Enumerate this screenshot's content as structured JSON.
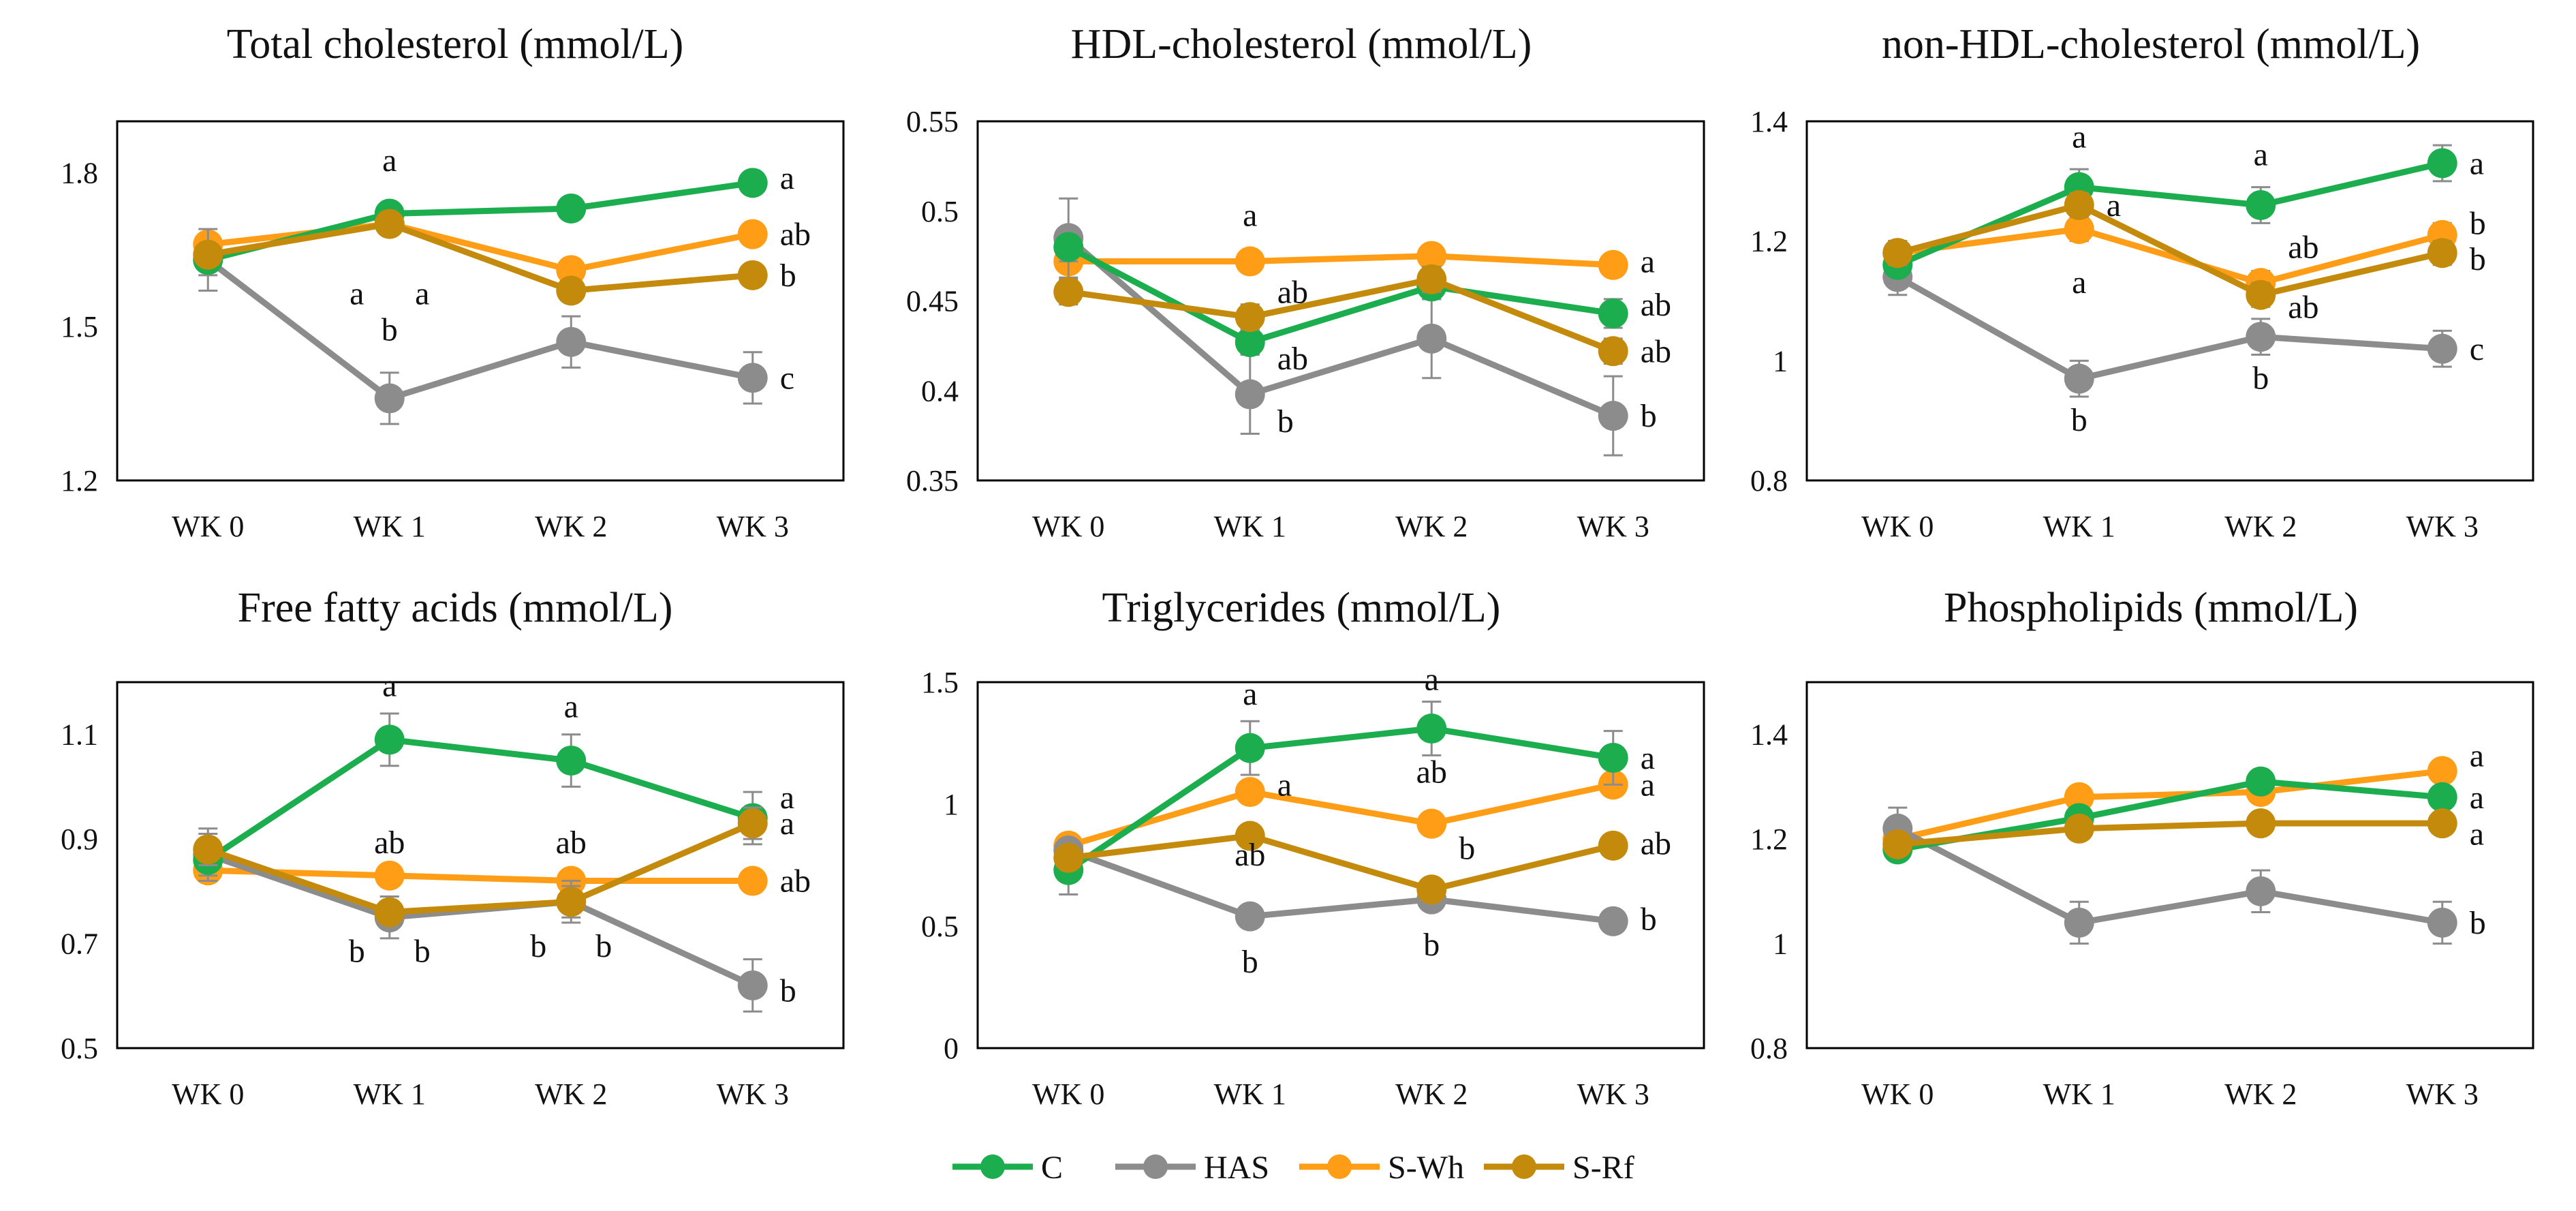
{
  "colors": {
    "C": "#1cae4e",
    "HAS": "#8c8c8c",
    "S-Wh": "#ff9e16",
    "S-Rf": "#c48a0c",
    "axis": "#000000"
  },
  "legend": [
    {
      "name": "C",
      "label": "C"
    },
    {
      "name": "HAS",
      "label": "HAS"
    },
    {
      "name": "S-Wh",
      "label": "S-Wh"
    },
    {
      "name": "S-Rf",
      "label": "S-Rf"
    }
  ],
  "chart_data": [
    {
      "type": "line",
      "title": "Total cholesterol (mmol/L)",
      "categories": [
        "WK 0",
        "WK 1",
        "WK 2",
        "WK 3"
      ],
      "ylim": [
        1.2,
        1.9
      ],
      "yticks": [
        "1.2",
        "1.5",
        "1.8"
      ],
      "series": [
        {
          "name": "C",
          "values": [
            1.63,
            1.72,
            1.73,
            1.78
          ],
          "err": [
            0.03,
            0.02,
            0.02,
            0.02
          ]
        },
        {
          "name": "HAS",
          "values": [
            1.63,
            1.36,
            1.47,
            1.4
          ],
          "err": [
            0.06,
            0.05,
            0.05,
            0.05
          ]
        },
        {
          "name": "S-Wh",
          "values": [
            1.66,
            1.7,
            1.61,
            1.68
          ],
          "err": [
            0.02,
            0.02,
            0.02,
            0.02
          ]
        },
        {
          "name": "S-Rf",
          "values": [
            1.64,
            1.7,
            1.57,
            1.6
          ],
          "err": [
            0.02,
            0.02,
            0.02,
            0.02
          ]
        }
      ],
      "annotations": [
        {
          "x": 1,
          "y": 1.79,
          "text": "a",
          "pos": "above"
        },
        {
          "x": 1,
          "y": 1.61,
          "text": "a",
          "pos": "belowleft"
        },
        {
          "x": 1,
          "y": 1.61,
          "text": "a",
          "pos": "belowright"
        },
        {
          "x": 1,
          "y": 1.46,
          "text": "b",
          "pos": "above"
        },
        {
          "x": 3,
          "y": 1.79,
          "text": "a",
          "pos": "right"
        },
        {
          "x": 3,
          "y": 1.68,
          "text": "ab",
          "pos": "right"
        },
        {
          "x": 3,
          "y": 1.6,
          "text": "b",
          "pos": "right"
        },
        {
          "x": 3,
          "y": 1.4,
          "text": "c",
          "pos": "right"
        }
      ]
    },
    {
      "type": "line",
      "title": "HDL-cholesterol (mmol/L)",
      "categories": [
        "WK 0",
        "WK 1",
        "WK 2",
        "WK 3"
      ],
      "ylim": [
        0.35,
        0.55
      ],
      "yticks": [
        "0.35",
        "0.4",
        "0.45",
        "0.5",
        "0.55"
      ],
      "series": [
        {
          "name": "C",
          "values": [
            0.48,
            0.427,
            0.458,
            0.443
          ],
          "err": [
            0.008,
            0.007,
            0.007,
            0.008
          ]
        },
        {
          "name": "HAS",
          "values": [
            0.485,
            0.398,
            0.429,
            0.386
          ],
          "err": [
            0.022,
            0.022,
            0.022,
            0.022
          ]
        },
        {
          "name": "S-Wh",
          "values": [
            0.472,
            0.472,
            0.475,
            0.47
          ],
          "err": [
            0.005,
            0.005,
            0.005,
            0.005
          ]
        },
        {
          "name": "S-Rf",
          "values": [
            0.455,
            0.441,
            0.462,
            0.422
          ],
          "err": [
            0.007,
            0.007,
            0.007,
            0.007
          ]
        }
      ],
      "annotations": [
        {
          "x": 1,
          "y": 0.488,
          "text": "a",
          "pos": "above"
        },
        {
          "x": 1,
          "y": 0.455,
          "text": "ab",
          "pos": "right"
        },
        {
          "x": 1,
          "y": 0.418,
          "text": "ab",
          "pos": "right"
        },
        {
          "x": 1,
          "y": 0.383,
          "text": "b",
          "pos": "right"
        },
        {
          "x": 3,
          "y": 0.472,
          "text": "a",
          "pos": "right"
        },
        {
          "x": 3,
          "y": 0.448,
          "text": "ab",
          "pos": "right"
        },
        {
          "x": 3,
          "y": 0.422,
          "text": "ab",
          "pos": "right"
        },
        {
          "x": 3,
          "y": 0.386,
          "text": "b",
          "pos": "right"
        }
      ]
    },
    {
      "type": "line",
      "title": "non-HDL-cholesterol (mmol/L)",
      "categories": [
        "WK 0",
        "WK 1",
        "WK 2",
        "WK 3"
      ],
      "ylim": [
        0.8,
        1.4
      ],
      "yticks": [
        "0.8",
        "1",
        "1.2",
        "1.4"
      ],
      "series": [
        {
          "name": "C",
          "values": [
            1.16,
            1.29,
            1.26,
            1.33
          ],
          "err": [
            0.02,
            0.03,
            0.03,
            0.03
          ]
        },
        {
          "name": "HAS",
          "values": [
            1.14,
            0.97,
            1.04,
            1.02
          ],
          "err": [
            0.03,
            0.03,
            0.03,
            0.03
          ]
        },
        {
          "name": "S-Wh",
          "values": [
            1.18,
            1.22,
            1.13,
            1.21
          ],
          "err": [
            0.02,
            0.02,
            0.02,
            0.02
          ]
        },
        {
          "name": "S-Rf",
          "values": [
            1.18,
            1.26,
            1.11,
            1.18
          ],
          "err": [
            0.02,
            0.02,
            0.02,
            0.02
          ]
        }
      ],
      "annotations": [
        {
          "x": 1,
          "y": 1.345,
          "text": "a",
          "pos": "above"
        },
        {
          "x": 1,
          "y": 1.26,
          "text": "a",
          "pos": "right"
        },
        {
          "x": 1,
          "y": 1.17,
          "text": "a",
          "pos": "below"
        },
        {
          "x": 1,
          "y": 0.94,
          "text": "b",
          "pos": "below"
        },
        {
          "x": 2,
          "y": 1.315,
          "text": "a",
          "pos": "above"
        },
        {
          "x": 2,
          "y": 1.19,
          "text": "ab",
          "pos": "right"
        },
        {
          "x": 2,
          "y": 1.09,
          "text": "ab",
          "pos": "right"
        },
        {
          "x": 2,
          "y": 1.01,
          "text": "b",
          "pos": "below"
        },
        {
          "x": 3,
          "y": 1.33,
          "text": "a",
          "pos": "right"
        },
        {
          "x": 3,
          "y": 1.23,
          "text": "b",
          "pos": "right"
        },
        {
          "x": 3,
          "y": 1.17,
          "text": "b",
          "pos": "right"
        },
        {
          "x": 3,
          "y": 1.02,
          "text": "c",
          "pos": "right"
        }
      ]
    },
    {
      "type": "line",
      "title": "Free fatty acids (mmol/L)",
      "categories": [
        "WK 0",
        "WK 1",
        "WK 2",
        "WK 3"
      ],
      "ylim": [
        0.5,
        1.2
      ],
      "yticks": [
        "0.5",
        "0.7",
        "0.9",
        "1.1"
      ],
      "series": [
        {
          "name": "C",
          "values": [
            0.86,
            1.09,
            1.05,
            0.94
          ],
          "err": [
            0.03,
            0.05,
            0.05,
            0.05
          ]
        },
        {
          "name": "HAS",
          "values": [
            0.87,
            0.75,
            0.78,
            0.62
          ],
          "err": [
            0.05,
            0.04,
            0.04,
            0.05
          ]
        },
        {
          "name": "S-Wh",
          "values": [
            0.84,
            0.83,
            0.82,
            0.82
          ],
          "err": [
            0.02,
            0.02,
            0.02,
            0.02
          ]
        },
        {
          "name": "S-Rf",
          "values": [
            0.88,
            0.76,
            0.78,
            0.93
          ],
          "err": [
            0.03,
            0.03,
            0.03,
            0.03
          ]
        }
      ],
      "annotations": [
        {
          "x": 1,
          "y": 1.16,
          "text": "a",
          "pos": "above"
        },
        {
          "x": 1,
          "y": 0.86,
          "text": "ab",
          "pos": "above"
        },
        {
          "x": 1,
          "y": 0.73,
          "text": "b",
          "pos": "belowleft"
        },
        {
          "x": 1,
          "y": 0.73,
          "text": "b",
          "pos": "belowright"
        },
        {
          "x": 2,
          "y": 1.12,
          "text": "a",
          "pos": "above"
        },
        {
          "x": 2,
          "y": 0.86,
          "text": "ab",
          "pos": "above"
        },
        {
          "x": 2,
          "y": 0.74,
          "text": "b",
          "pos": "belowleft"
        },
        {
          "x": 2,
          "y": 0.74,
          "text": "b",
          "pos": "belowright"
        },
        {
          "x": 3,
          "y": 0.98,
          "text": "a",
          "pos": "right"
        },
        {
          "x": 3,
          "y": 0.93,
          "text": "a",
          "pos": "right"
        },
        {
          "x": 3,
          "y": 0.82,
          "text": "ab",
          "pos": "right"
        },
        {
          "x": 3,
          "y": 0.61,
          "text": "b",
          "pos": "right"
        }
      ]
    },
    {
      "type": "line",
      "title": "Triglycerides (mmol/L)",
      "categories": [
        "WK 0",
        "WK 1",
        "WK 2",
        "WK 3"
      ],
      "ylim": [
        0,
        1.5
      ],
      "yticks": [
        "0",
        "0.5",
        "1",
        "1.5"
      ],
      "series": [
        {
          "name": "C",
          "values": [
            0.73,
            1.23,
            1.31,
            1.19
          ],
          "err": [
            0.1,
            0.11,
            0.11,
            0.11
          ]
        },
        {
          "name": "HAS",
          "values": [
            0.81,
            0.54,
            0.61,
            0.52
          ],
          "err": [
            0.03,
            0.03,
            0.03,
            0.03
          ]
        },
        {
          "name": "S-Wh",
          "values": [
            0.83,
            1.05,
            0.92,
            1.08
          ],
          "err": [
            0.02,
            0.02,
            0.02,
            0.02
          ]
        },
        {
          "name": "S-Rf",
          "values": [
            0.78,
            0.87,
            0.65,
            0.83
          ],
          "err": [
            0.02,
            0.02,
            0.02,
            0.02
          ]
        }
      ],
      "annotations": [
        {
          "x": 1,
          "y": 1.38,
          "text": "a",
          "pos": "above"
        },
        {
          "x": 1,
          "y": 1.08,
          "text": "a",
          "pos": "right"
        },
        {
          "x": 1,
          "y": 0.72,
          "text": "ab",
          "pos": "above"
        },
        {
          "x": 1,
          "y": 0.45,
          "text": "b",
          "pos": "below"
        },
        {
          "x": 2,
          "y": 1.44,
          "text": "a",
          "pos": "above"
        },
        {
          "x": 2,
          "y": 1.06,
          "text": "ab",
          "pos": "above"
        },
        {
          "x": 2,
          "y": 0.82,
          "text": "b",
          "pos": "right"
        },
        {
          "x": 2,
          "y": 0.52,
          "text": "b",
          "pos": "below"
        },
        {
          "x": 3,
          "y": 1.19,
          "text": "a",
          "pos": "right"
        },
        {
          "x": 3,
          "y": 1.08,
          "text": "a",
          "pos": "right"
        },
        {
          "x": 3,
          "y": 0.84,
          "text": "ab",
          "pos": "right"
        },
        {
          "x": 3,
          "y": 0.53,
          "text": "b",
          "pos": "right"
        }
      ]
    },
    {
      "type": "line",
      "title": "Phospholipids (mmol/L)",
      "categories": [
        "WK 0",
        "WK 1",
        "WK 2",
        "WK 3"
      ],
      "ylim": [
        0.8,
        1.5
      ],
      "yticks": [
        "0.8",
        "1",
        "1.2",
        "1.4"
      ],
      "series": [
        {
          "name": "C",
          "values": [
            1.18,
            1.24,
            1.31,
            1.28
          ],
          "err": [
            0.02,
            0.02,
            0.02,
            0.02
          ]
        },
        {
          "name": "HAS",
          "values": [
            1.22,
            1.04,
            1.1,
            1.04
          ],
          "err": [
            0.04,
            0.04,
            0.04,
            0.04
          ]
        },
        {
          "name": "S-Wh",
          "values": [
            1.2,
            1.28,
            1.29,
            1.33
          ],
          "err": [
            0.02,
            0.02,
            0.02,
            0.02
          ]
        },
        {
          "name": "S-Rf",
          "values": [
            1.19,
            1.22,
            1.23,
            1.23
          ],
          "err": [
            0.02,
            0.02,
            0.02,
            0.02
          ]
        }
      ],
      "annotations": [
        {
          "x": 3,
          "y": 1.36,
          "text": "a",
          "pos": "right"
        },
        {
          "x": 3,
          "y": 1.28,
          "text": "a",
          "pos": "right"
        },
        {
          "x": 3,
          "y": 1.21,
          "text": "a",
          "pos": "right"
        },
        {
          "x": 3,
          "y": 1.04,
          "text": "b",
          "pos": "right"
        }
      ]
    }
  ]
}
